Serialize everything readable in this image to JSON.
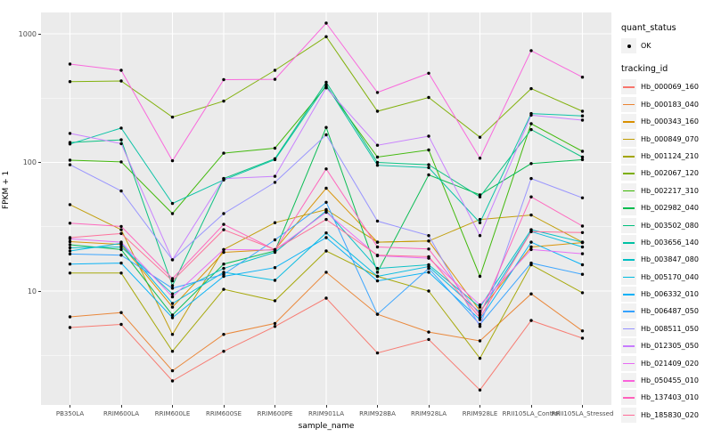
{
  "colors": {
    "panel_bg": "#EBEBEB",
    "grid_major": "#FFFFFF",
    "grid_minor": "#FFFFFF",
    "tick_text": "#4D4D4D",
    "point": "#000000",
    "legend_key_bg": "#F2F2F2"
  },
  "legend": {
    "quant_status": {
      "title": "quant_status",
      "items": [
        {
          "label": "OK"
        }
      ]
    },
    "tracking_id": {
      "title": "tracking_id"
    }
  },
  "chart_data": {
    "type": "line",
    "title": "",
    "xlabel": "sample_name",
    "ylabel": "FPKM + 1",
    "y_scale": "log10",
    "ylim": [
      1.3,
      1500
    ],
    "y_tick_labels": [
      "10",
      "100",
      "1000"
    ],
    "y_tick_values": [
      10,
      100,
      1000
    ],
    "y_minor_values": [
      3.162,
      31.62,
      316.2
    ],
    "grid": true,
    "legend_position": "right",
    "x_categories": [
      "PB350LA",
      "RRIM600LA",
      "RRIM600LE",
      "RRIM600SE",
      "RRIM600PE",
      "RRIM901LA",
      "RRIM928BA",
      "RRIM928LA",
      "RRIM928LE",
      "RRII105LA_Control",
      "RRII105LA_Stressed"
    ],
    "point_shape": "filled-circle",
    "series": [
      {
        "name": "Hb_000069_160",
        "color": "#F8766D",
        "values": [
          5.2,
          5.5,
          2.0,
          3.4,
          5.3,
          8.8,
          3.3,
          4.2,
          1.7,
          5.9,
          4.3
        ]
      },
      {
        "name": "Hb_000183_040",
        "color": "#EA8331",
        "values": [
          6.3,
          6.8,
          2.4,
          4.6,
          5.6,
          14,
          6.6,
          4.8,
          4.1,
          9.5,
          4.9
        ]
      },
      {
        "name": "Hb_000343_160",
        "color": "#D89000",
        "values": [
          24.2,
          23,
          7.5,
          20,
          21,
          63,
          24,
          24.5,
          7.0,
          22,
          23.8
        ]
      },
      {
        "name": "Hb_000849_070",
        "color": "#C09B00",
        "values": [
          47,
          30,
          4.6,
          21,
          34,
          43,
          24,
          24.5,
          36,
          39,
          24
        ]
      },
      {
        "name": "Hb_001124_210",
        "color": "#A3A500",
        "values": [
          13.8,
          13.8,
          3.4,
          10.3,
          8.4,
          20.5,
          13,
          10,
          3.0,
          16,
          9.7
        ]
      },
      {
        "name": "Hb_002067_120",
        "color": "#7CAE00",
        "values": [
          425,
          430,
          225,
          300,
          520,
          950,
          250,
          320,
          157,
          375,
          250
        ]
      },
      {
        "name": "Hb_002217_310",
        "color": "#39B600",
        "values": [
          104,
          101,
          40,
          118,
          129,
          390,
          110,
          125,
          13,
          200,
          122
        ]
      },
      {
        "name": "Hb_002982_040",
        "color": "#00BB4E",
        "values": [
          22.9,
          21,
          6.5,
          16.2,
          20.5,
          187,
          14,
          80,
          56,
          98,
          105
        ]
      },
      {
        "name": "Hb_003502_080",
        "color": "#00BF7D",
        "values": [
          143,
          150,
          11,
          75,
          107,
          420,
          100,
          96,
          54,
          180,
          110
        ]
      },
      {
        "name": "Hb_003656_140",
        "color": "#00C1A3",
        "values": [
          139,
          185,
          48,
          73,
          105,
          400,
          95,
          91,
          34,
          240,
          230
        ]
      },
      {
        "name": "Hb_003847_080",
        "color": "#00BFC4",
        "values": [
          21.7,
          22,
          9.5,
          15,
          20,
          42,
          15,
          16,
          7.5,
          30,
          24
        ]
      },
      {
        "name": "Hb_005170_040",
        "color": "#00BAE0",
        "values": [
          20.5,
          23.5,
          8.0,
          14,
          12.1,
          28.3,
          13,
          15.5,
          6.8,
          29,
          22
        ]
      },
      {
        "name": "Hb_006332_010",
        "color": "#00B0F6",
        "values": [
          16.2,
          16.5,
          6.2,
          13,
          15.2,
          26,
          12,
          14,
          6.0,
          24,
          16
        ]
      },
      {
        "name": "Hb_006487_050",
        "color": "#35A2FF",
        "values": [
          19.4,
          19,
          10.5,
          13.5,
          25,
          49,
          6.6,
          15,
          5.5,
          16.5,
          13.5
        ]
      },
      {
        "name": "Hb_008511_050",
        "color": "#9590FF",
        "values": [
          96,
          60,
          17.5,
          40,
          70,
          164,
          35,
          27,
          5.3,
          75,
          53
        ]
      },
      {
        "name": "Hb_012305_050",
        "color": "#C77CFF",
        "values": [
          168,
          140,
          17.5,
          75,
          78,
          380,
          136,
          160,
          27,
          233,
          213
        ]
      },
      {
        "name": "Hb_021409_020",
        "color": "#E76BF3",
        "values": [
          25.5,
          24,
          9.0,
          21,
          20.8,
          41,
          18.8,
          18,
          7.8,
          21,
          19.5
        ]
      },
      {
        "name": "Hb_050455_010",
        "color": "#FA62DB",
        "values": [
          582,
          520,
          103,
          440,
          443,
          1210,
          350,
          494,
          108,
          740,
          460
        ]
      },
      {
        "name": "Hb_137403_010",
        "color": "#FF62BC",
        "values": [
          33.7,
          31.8,
          12.5,
          33,
          20.9,
          89,
          22,
          21.2,
          6.5,
          54,
          32
        ]
      },
      {
        "name": "Hb_185830_020",
        "color": "#FF6A98",
        "values": [
          26,
          28,
          12.0,
          30,
          21,
          36,
          19,
          18.5,
          6.2,
          29,
          28.5
        ]
      }
    ]
  }
}
